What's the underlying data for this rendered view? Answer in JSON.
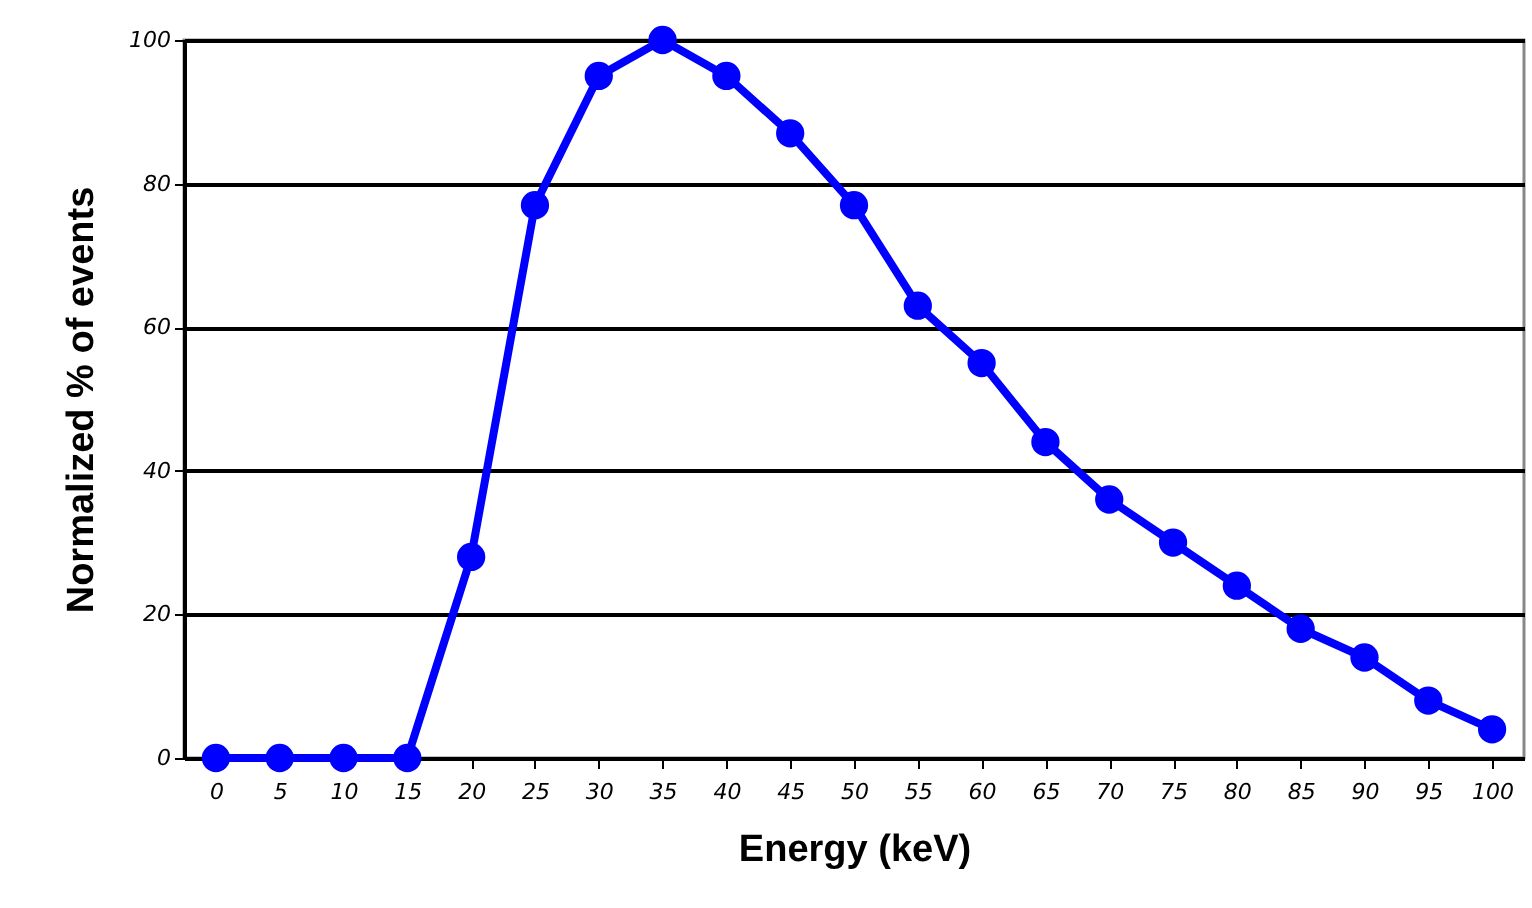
{
  "chart_data": {
    "type": "line",
    "xlabel": "Energy (keV)",
    "ylabel": "Normalized % of events",
    "categories": [
      "0",
      "5",
      "10",
      "15",
      "20",
      "25",
      "30",
      "35",
      "40",
      "45",
      "50",
      "55",
      "60",
      "65",
      "70",
      "75",
      "80",
      "85",
      "90",
      "95",
      "100"
    ],
    "series": [
      {
        "color": "#0000ff",
        "values": [
          0,
          0,
          0,
          0,
          28,
          77,
          95,
          100,
          95,
          87,
          77,
          63,
          55,
          44,
          36,
          30,
          24,
          18,
          14,
          8,
          4
        ]
      }
    ],
    "ylim": [
      0,
      100
    ],
    "yticks": [
      0,
      20,
      40,
      60,
      80,
      100
    ],
    "grid": "y",
    "marker": "circle",
    "line_style": "solid"
  }
}
